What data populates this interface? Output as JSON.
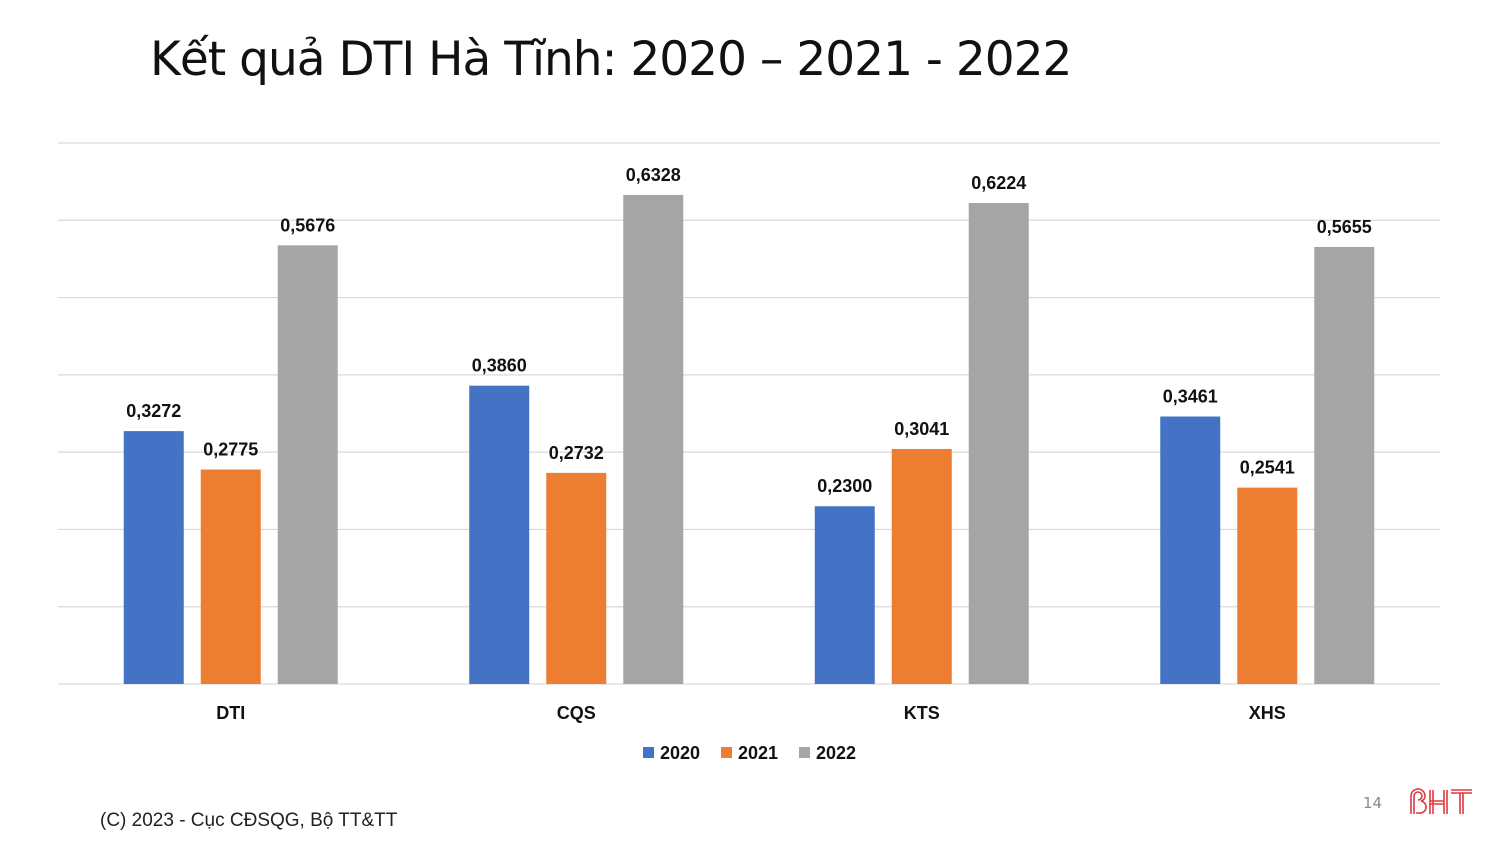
{
  "slide": {
    "title": "Kết quả DTI Hà Tĩnh: 2020 – 2021 - 2022",
    "footer": "(C) 2023 - Cục CĐSQG, Bộ TT&TT",
    "page_number": "14",
    "logo_text": "BHT"
  },
  "chart_data": {
    "type": "bar",
    "title": "Kết quả DTI Hà Tĩnh: 2020 – 2021 - 2022",
    "categories": [
      "DTI",
      "CQS",
      "KTS",
      "XHS"
    ],
    "series": [
      {
        "name": "2020",
        "color": "#4472C4",
        "values": [
          0.3272,
          0.386,
          0.23,
          0.3461
        ],
        "labels": [
          "0,3272",
          "0,3860",
          "0,2300",
          "0,3461"
        ]
      },
      {
        "name": "2021",
        "color": "#ED7D31",
        "values": [
          0.2775,
          0.2732,
          0.3041,
          0.2541
        ],
        "labels": [
          "0,2775",
          "0,2732",
          "0,3041",
          "0,2541"
        ]
      },
      {
        "name": "2022",
        "color": "#A5A5A5",
        "values": [
          0.5676,
          0.6328,
          0.6224,
          0.5655
        ],
        "labels": [
          "0,5676",
          "0,6328",
          "0,6224",
          "0,5655"
        ]
      }
    ],
    "ylim": [
      0,
      0.7
    ],
    "ytick_step": 0.1,
    "grid": true,
    "legend_position": "bottom",
    "xlabel": "",
    "ylabel": ""
  }
}
